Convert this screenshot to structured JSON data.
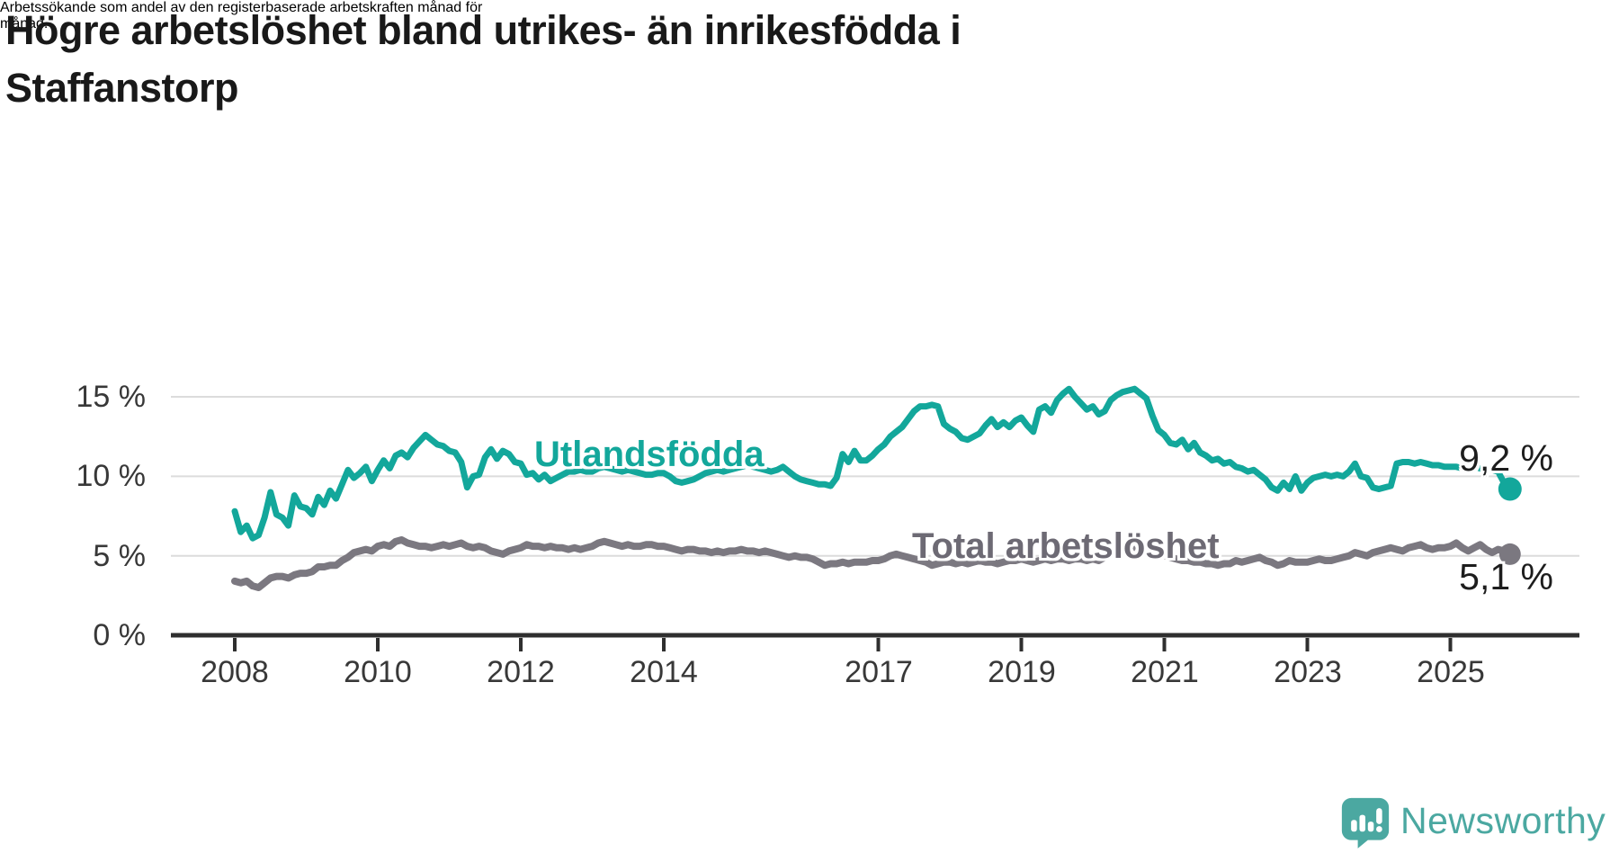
{
  "header": {
    "title_lines": [
      "Högre arbetslöshet bland utrikes- än inrikesfödda i",
      "Staffanstorp"
    ],
    "subtitle_lines": [
      "Arbetssökande som andel av den registerbaserade arbetskraften månad för",
      "månad."
    ]
  },
  "chart_data": {
    "type": "line",
    "frequency": "monthly",
    "x_start": "2008-01",
    "x_end": "2025-11",
    "x_axis_ticks": [
      2008,
      2010,
      2012,
      2014,
      2017,
      2019,
      2021,
      2023,
      2025
    ],
    "y_axis": {
      "labels": [
        "0 %",
        "5 %",
        "10 %",
        "15 %"
      ],
      "values": [
        0,
        5,
        10,
        15
      ],
      "ylim": [
        0,
        16.2
      ]
    },
    "grid_color": "#dcdcdc",
    "axis_color": "#2f2f2f",
    "tick_label_color": "#383838",
    "series": [
      {
        "id": "utlandsfodda",
        "name": "Utlandsfödda",
        "color": "#13a79b",
        "label_color": "#13a79b",
        "end_label": "9,2 %",
        "end_value": 9.2,
        "values": [
          7.8,
          6.5,
          6.9,
          6.1,
          6.3,
          7.4,
          9.0,
          7.6,
          7.4,
          6.9,
          8.8,
          8.1,
          8.0,
          7.6,
          8.7,
          8.2,
          9.1,
          8.6,
          9.5,
          10.4,
          9.9,
          10.2,
          10.6,
          9.7,
          10.4,
          11.0,
          10.5,
          11.3,
          11.5,
          11.2,
          11.8,
          12.2,
          12.6,
          12.3,
          12.0,
          11.9,
          11.6,
          11.5,
          10.9,
          9.3,
          10.0,
          10.1,
          11.2,
          11.7,
          11.1,
          11.6,
          11.4,
          10.9,
          10.8,
          10.1,
          10.2,
          9.8,
          10.1,
          9.7,
          9.9,
          10.1,
          10.3,
          10.3,
          10.4,
          10.3,
          10.3,
          10.5,
          10.6,
          10.5,
          10.4,
          10.3,
          10.4,
          10.3,
          10.2,
          10.1,
          10.1,
          10.2,
          10.2,
          10.0,
          9.7,
          9.6,
          9.7,
          9.8,
          10.0,
          10.2,
          10.3,
          10.4,
          10.3,
          10.4,
          10.5,
          10.6,
          10.7,
          10.6,
          10.5,
          10.4,
          10.3,
          10.4,
          10.6,
          10.3,
          10.0,
          9.8,
          9.7,
          9.6,
          9.5,
          9.5,
          9.4,
          9.9,
          11.4,
          10.9,
          11.6,
          11.0,
          11.0,
          11.3,
          11.7,
          12.0,
          12.5,
          12.8,
          13.1,
          13.6,
          14.1,
          14.4,
          14.4,
          14.5,
          14.4,
          13.3,
          13.0,
          12.8,
          12.4,
          12.3,
          12.5,
          12.7,
          13.2,
          13.6,
          13.1,
          13.4,
          13.1,
          13.5,
          13.7,
          13.2,
          12.8,
          14.2,
          14.4,
          14.0,
          14.8,
          15.2,
          15.5,
          15.0,
          14.6,
          14.2,
          14.4,
          13.9,
          14.1,
          14.8,
          15.1,
          15.3,
          15.4,
          15.5,
          15.2,
          14.9,
          13.8,
          12.9,
          12.6,
          12.1,
          12.0,
          12.3,
          11.7,
          12.1,
          11.5,
          11.3,
          11.0,
          11.1,
          10.8,
          10.9,
          10.6,
          10.5,
          10.3,
          10.4,
          10.1,
          9.8,
          9.3,
          9.1,
          9.6,
          9.2,
          10.0,
          9.1,
          9.6,
          9.9,
          10.0,
          10.1,
          10.0,
          10.1,
          10.0,
          10.3,
          10.8,
          10.0,
          9.9,
          9.3,
          9.2,
          9.3,
          9.4,
          10.8,
          10.9,
          10.9,
          10.8,
          10.9,
          10.8,
          10.7,
          10.7,
          10.6,
          10.6,
          10.6,
          10.5,
          10.5,
          10.6,
          10.5,
          10.4,
          10.4,
          10.3,
          9.6,
          9.2
        ]
      },
      {
        "id": "total",
        "name": "Total arbetslöshet",
        "color": "#7b7880",
        "label_color": "#6d6a74",
        "end_label": "5,1 %",
        "end_value": 5.1,
        "values": [
          3.4,
          3.3,
          3.4,
          3.1,
          3.0,
          3.3,
          3.6,
          3.7,
          3.7,
          3.6,
          3.8,
          3.9,
          3.9,
          4.0,
          4.3,
          4.3,
          4.4,
          4.4,
          4.7,
          4.9,
          5.2,
          5.3,
          5.4,
          5.3,
          5.6,
          5.7,
          5.6,
          5.9,
          6.0,
          5.8,
          5.7,
          5.6,
          5.6,
          5.5,
          5.6,
          5.7,
          5.6,
          5.7,
          5.8,
          5.6,
          5.5,
          5.6,
          5.5,
          5.3,
          5.2,
          5.1,
          5.3,
          5.4,
          5.5,
          5.7,
          5.6,
          5.6,
          5.5,
          5.6,
          5.5,
          5.5,
          5.4,
          5.5,
          5.4,
          5.5,
          5.6,
          5.8,
          5.9,
          5.8,
          5.7,
          5.6,
          5.7,
          5.6,
          5.6,
          5.7,
          5.7,
          5.6,
          5.6,
          5.5,
          5.4,
          5.3,
          5.4,
          5.4,
          5.3,
          5.3,
          5.2,
          5.3,
          5.2,
          5.3,
          5.3,
          5.4,
          5.3,
          5.3,
          5.2,
          5.3,
          5.2,
          5.1,
          5.0,
          4.9,
          5.0,
          4.9,
          4.9,
          4.8,
          4.6,
          4.4,
          4.5,
          4.5,
          4.6,
          4.5,
          4.6,
          4.6,
          4.6,
          4.7,
          4.7,
          4.8,
          5.0,
          5.1,
          5.0,
          4.9,
          4.8,
          4.7,
          4.6,
          4.4,
          4.5,
          4.6,
          4.6,
          4.5,
          4.6,
          4.5,
          4.6,
          4.7,
          4.6,
          4.6,
          4.5,
          4.6,
          4.7,
          4.7,
          4.8,
          4.7,
          4.6,
          4.7,
          4.8,
          4.7,
          4.8,
          4.8,
          4.7,
          4.8,
          4.8,
          4.7,
          4.8,
          4.7,
          4.9,
          5.2,
          5.4,
          5.5,
          5.6,
          5.5,
          5.4,
          5.3,
          5.2,
          5.1,
          5.0,
          4.9,
          4.8,
          4.7,
          4.7,
          4.6,
          4.6,
          4.5,
          4.5,
          4.4,
          4.5,
          4.5,
          4.7,
          4.6,
          4.7,
          4.8,
          4.9,
          4.7,
          4.6,
          4.4,
          4.5,
          4.7,
          4.6,
          4.6,
          4.6,
          4.7,
          4.8,
          4.7,
          4.7,
          4.8,
          4.9,
          5.0,
          5.2,
          5.1,
          5.0,
          5.2,
          5.3,
          5.4,
          5.5,
          5.4,
          5.3,
          5.5,
          5.6,
          5.7,
          5.5,
          5.4,
          5.5,
          5.5,
          5.6,
          5.8,
          5.5,
          5.3,
          5.5,
          5.7,
          5.4,
          5.2,
          5.4,
          5.3,
          5.1
        ]
      }
    ]
  },
  "footer": {
    "brand": "Newsworthy",
    "brand_color": "#4ba8a1",
    "logo_icon": "speech-bubble-bar-chart"
  }
}
